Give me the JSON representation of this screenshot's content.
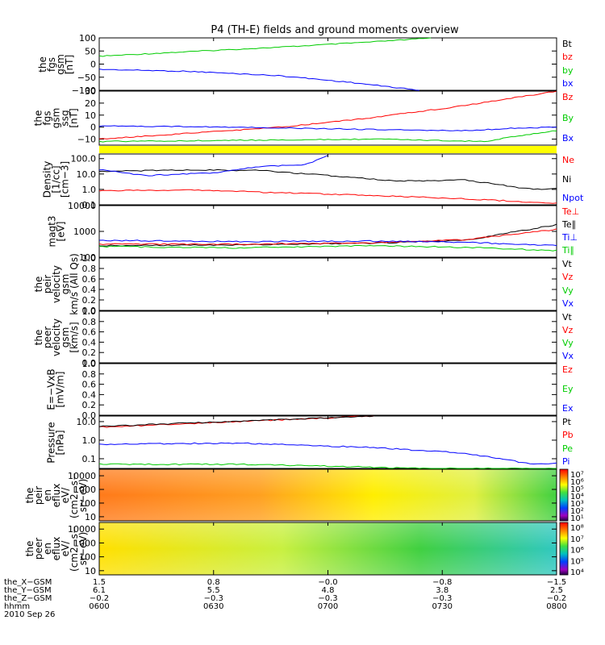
{
  "chart_data": {
    "title": "P4 (TH-E) fields and ground moments overview",
    "type": "line",
    "time_range": [
      "0600",
      "0800"
    ],
    "panels": [
      {
        "id": "fgs-gsm",
        "ylabel": "the\nfgs\ngsm\n[nT]",
        "yscale": "linear",
        "ylim": [
          -100,
          100
        ],
        "ticks": [
          "100",
          "50",
          "0",
          "−50",
          "−100"
        ],
        "tick_values": [
          100,
          50,
          0,
          -50,
          -100
        ],
        "legend": [
          "Bt",
          "bz",
          "by",
          "bx"
        ],
        "legend_colors": [
          "#000000",
          "#ff0000",
          "#00cc00",
          "#0000ff"
        ],
        "series": [
          {
            "name": "by",
            "color": "#00cc00",
            "x": [
              0,
              0.2,
              0.4,
              0.6,
              0.73
            ],
            "values": [
              30,
              48,
              65,
              85,
              100
            ]
          },
          {
            "name": "bx",
            "color": "#0000ff",
            "x": [
              0,
              0.2,
              0.4,
              0.55,
              0.7
            ],
            "values": [
              -20,
              -28,
              -45,
              -70,
              -100
            ]
          }
        ]
      },
      {
        "id": "fgs-gsm-ssg",
        "ylabel": "the\nfgs\ngsm\nssg\n[nT]",
        "yscale": "linear",
        "ylim": [
          -15,
          30
        ],
        "ticks": [
          "30",
          "20",
          "10",
          "0",
          "−10"
        ],
        "tick_values": [
          30,
          20,
          10,
          0,
          -10
        ],
        "legend": [
          "Bz",
          "By",
          "Bx"
        ],
        "legend_colors": [
          "#ff0000",
          "#00cc00",
          "#0000ff"
        ],
        "series": [
          {
            "name": "Bz",
            "color": "#ff0000",
            "x": [
              0,
              0.2,
              0.4,
              0.6,
              0.8,
              1
            ],
            "values": [
              -10,
              -5,
              0,
              8,
              18,
              30
            ]
          },
          {
            "name": "By",
            "color": "#00cc00",
            "x": [
              0,
              0.3,
              0.6,
              0.85,
              0.9,
              1
            ],
            "values": [
              -12,
              -11,
              -10,
              -12,
              -8,
              -3
            ]
          },
          {
            "name": "Bx",
            "color": "#0000ff",
            "x": [
              0,
              0.3,
              0.6,
              0.8,
              0.9,
              1
            ],
            "values": [
              1,
              0,
              -2,
              -3,
              -1,
              0
            ]
          }
        ]
      },
      {
        "id": "density",
        "ylabel": "Density\n[1/cc]\n[cm−3]",
        "yscale": "log",
        "ylim": [
          0.1,
          200
        ],
        "ticks": [
          "100.0",
          "10.0",
          "1.0",
          "0.1"
        ],
        "tick_values": [
          100,
          10,
          1,
          0.1
        ],
        "legend": [
          "Ne",
          "Ni",
          "Npot"
        ],
        "legend_colors": [
          "#ff0000",
          "#000000",
          "#0000ff"
        ],
        "series": [
          {
            "name": "Ni",
            "color": "#000000",
            "x": [
              0,
              0.2,
              0.35,
              0.5,
              0.65,
              0.8,
              0.95,
              1
            ],
            "values": [
              15,
              18,
              17,
              8,
              3.5,
              4,
              1,
              1.2
            ]
          },
          {
            "name": "Ne",
            "color": "#ff0000",
            "x": [
              0,
              0.2,
              0.4,
              0.6,
              0.8,
              1
            ],
            "values": [
              0.8,
              0.95,
              0.6,
              0.4,
              0.25,
              0.12
            ]
          },
          {
            "name": "Npot",
            "color": "#0000ff",
            "x": [
              0,
              0.1,
              0.25,
              0.35,
              0.45,
              0.5
            ],
            "values": [
              20,
              8,
              12,
              30,
              40,
              150
            ]
          }
        ]
      },
      {
        "id": "temperature",
        "ylabel": "magt3\n[eV]",
        "yscale": "log",
        "ylim": [
          100,
          10000
        ],
        "ticks": [
          "10000",
          "1000",
          "100"
        ],
        "tick_values": [
          10000,
          1000,
          100
        ],
        "legend": [
          "Te⊥",
          "Te∥",
          "Ti⊥",
          "Ti∥"
        ],
        "legend_colors": [
          "#ff0000",
          "#000000",
          "#0000ff",
          "#00cc00"
        ],
        "series": [
          {
            "name": "Te∥",
            "color": "#000000",
            "x": [
              0,
              0.3,
              0.6,
              0.8,
              1
            ],
            "values": [
              280,
              300,
              350,
              450,
              1800
            ]
          },
          {
            "name": "Te⊥",
            "color": "#ff0000",
            "x": [
              0,
              0.3,
              0.6,
              0.8,
              1
            ],
            "values": [
              320,
              320,
              360,
              480,
              1200
            ]
          },
          {
            "name": "Ti⊥",
            "color": "#0000ff",
            "x": [
              0,
              0.3,
              0.6,
              0.8,
              1
            ],
            "values": [
              450,
              400,
              420,
              380,
              280
            ]
          },
          {
            "name": "Ti∥",
            "color": "#00cc00",
            "x": [
              0,
              0.3,
              0.6,
              0.8,
              1
            ],
            "values": [
              260,
              230,
              280,
              240,
              180
            ]
          }
        ]
      },
      {
        "id": "peir-velocity",
        "ylabel": "the\npeir\nvelocity\ngsm\nkm/s (All Qs)",
        "yscale": "linear",
        "ylim": [
          0,
          1
        ],
        "ticks": [
          "1.0",
          "0.8",
          "0.6",
          "0.4",
          "0.2",
          "0.0"
        ],
        "tick_values": [
          1,
          0.8,
          0.6,
          0.4,
          0.2,
          0
        ],
        "legend": [
          "Vt",
          "Vz",
          "Vy",
          "Vx"
        ],
        "legend_colors": [
          "#000000",
          "#ff0000",
          "#00cc00",
          "#0000ff"
        ],
        "series": []
      },
      {
        "id": "peer-velocity",
        "ylabel": "the\npeer\nvelocity\ngsm\n[km/s]",
        "yscale": "linear",
        "ylim": [
          0,
          1
        ],
        "ticks": [
          "1.0",
          "0.8",
          "0.6",
          "0.4",
          "0.2",
          "0.0"
        ],
        "tick_values": [
          1,
          0.8,
          0.6,
          0.4,
          0.2,
          0
        ],
        "legend": [
          "Vt",
          "Vz",
          "Vy",
          "Vx"
        ],
        "legend_colors": [
          "#000000",
          "#ff0000",
          "#00cc00",
          "#0000ff"
        ],
        "series": []
      },
      {
        "id": "efield",
        "ylabel": "E=−VxB\n[mV/m]",
        "yscale": "linear",
        "ylim": [
          0,
          1
        ],
        "ticks": [
          "1.0",
          "0.8",
          "0.6",
          "0.4",
          "0.2",
          "0.0"
        ],
        "tick_values": [
          1,
          0.8,
          0.6,
          0.4,
          0.2,
          0
        ],
        "legend": [
          "Ez",
          "Ey",
          "Ex"
        ],
        "legend_colors": [
          "#ff0000",
          "#00cc00",
          "#0000ff"
        ],
        "series": []
      },
      {
        "id": "pressure",
        "ylabel": "Pressure\n[nPa]",
        "yscale": "log",
        "ylim": [
          0.03,
          20
        ],
        "ticks": [
          "10.0",
          "1.0",
          "0.1"
        ],
        "tick_values": [
          10,
          1,
          0.1
        ],
        "legend": [
          "Pt",
          "Pb",
          "Pe",
          "Pi"
        ],
        "legend_colors": [
          "#000000",
          "#ff0000",
          "#00cc00",
          "#0000ff"
        ],
        "series": [
          {
            "name": "Pb",
            "color": "#ff0000",
            "x": [
              0,
              0.6
            ],
            "values": [
              5,
              20
            ]
          },
          {
            "name": "Pt",
            "color": "#000000",
            "x": [
              0,
              0.6
            ],
            "values": [
              5.5,
              20
            ]
          },
          {
            "name": "Pi",
            "color": "#0000ff",
            "x": [
              0,
              0.3,
              0.6,
              0.8,
              0.95,
              1
            ],
            "values": [
              0.6,
              0.7,
              0.4,
              0.2,
              0.05,
              0.06
            ]
          },
          {
            "name": "Pe",
            "color": "#00cc00",
            "x": [
              0,
              0.3,
              0.5,
              0.7,
              1
            ],
            "values": [
              0.05,
              0.05,
              0.04,
              0.03,
              0.03
            ]
          }
        ]
      },
      {
        "id": "peir-eflux",
        "type": "heatmap",
        "ylabel": "the\npeir\nen\neflux\neV/\n(cm2−s−\nsr−eV)",
        "yscale": "log",
        "ylim": [
          5,
          30000
        ],
        "ticks": [
          "10000",
          "1000",
          "100",
          "10"
        ],
        "tick_values": [
          10000,
          1000,
          100,
          10
        ],
        "colorbar_ticks": [
          "10⁷",
          "10⁶",
          "10⁵",
          "10⁴",
          "10³",
          "10²",
          "10¹"
        ]
      },
      {
        "id": "peer-eflux",
        "type": "heatmap",
        "ylabel": "the\npeer\nen\neflux\neV/\n(cm2−s−\nsr−eV)",
        "yscale": "log",
        "ylim": [
          5,
          30000
        ],
        "ticks": [
          "10000",
          "1000",
          "100",
          "10"
        ],
        "tick_values": [
          10000,
          1000,
          100,
          10
        ],
        "colorbar_ticks": [
          "10⁸",
          "10⁷",
          "10⁶",
          "10⁵",
          "10⁴"
        ]
      }
    ],
    "x_axis": {
      "row_labels": [
        "the_X−GSM",
        "the_Y−GSM",
        "the_Z−GSM",
        "hhmm",
        "2010 Sep 26"
      ],
      "columns": [
        [
          "1.5",
          "6.1",
          "−0.2",
          "0600"
        ],
        [
          "0.8",
          "5.5",
          "−0.3",
          "0630"
        ],
        [
          "−0.0",
          "4.8",
          "−0.3",
          "0700"
        ],
        [
          "−0.8",
          "3.8",
          "−0.3",
          "0730"
        ],
        [
          "−1.5",
          "2.5",
          "−0.2",
          "0800"
        ]
      ]
    }
  }
}
